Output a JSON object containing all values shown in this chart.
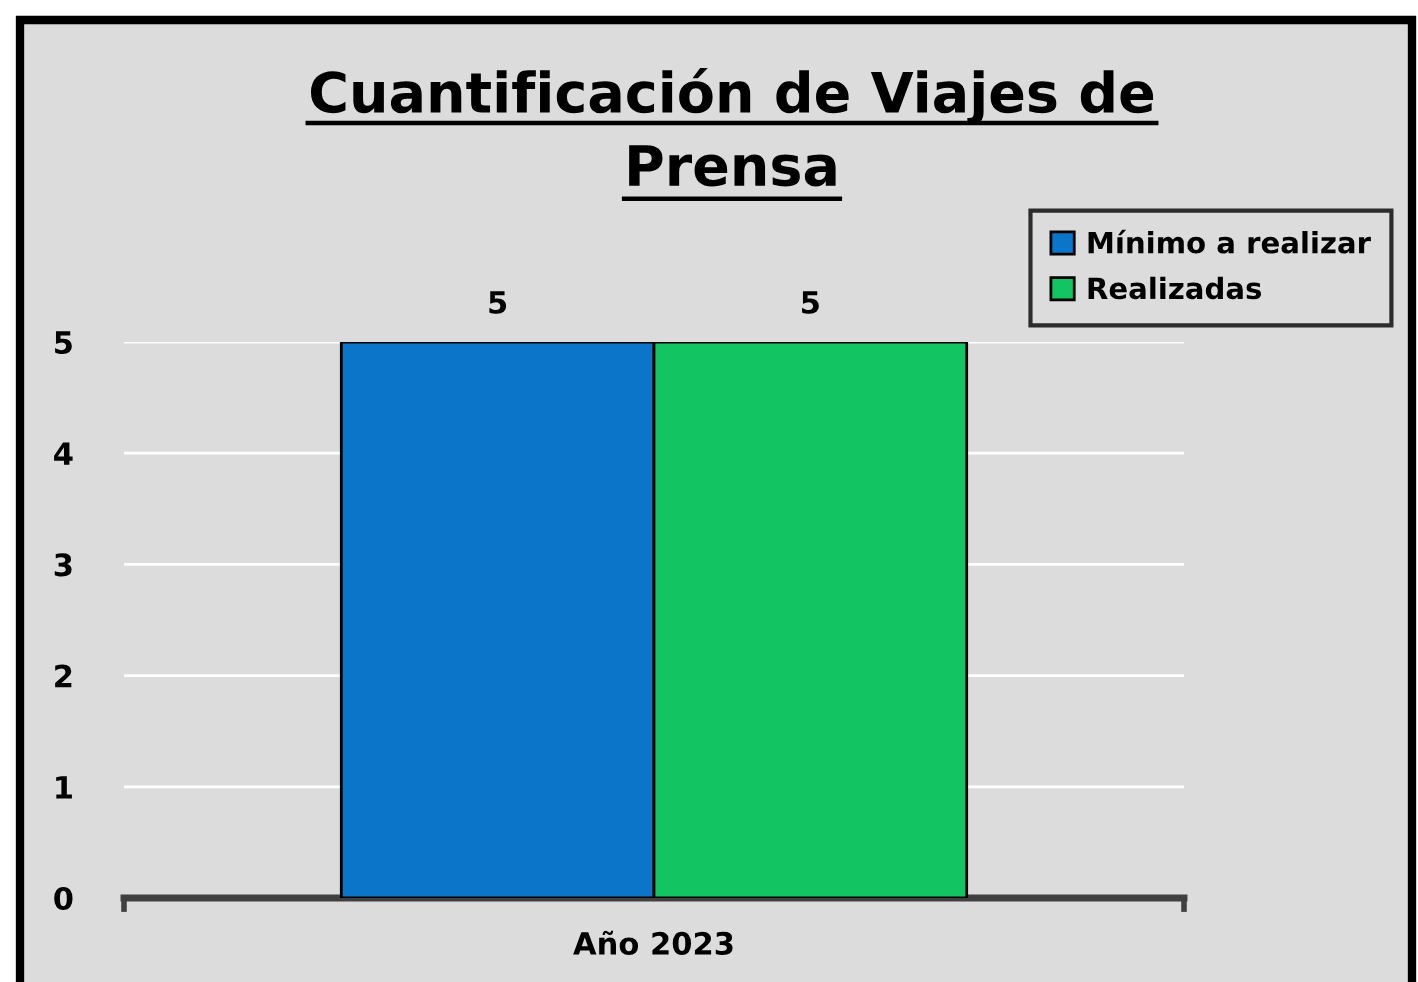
{
  "chart_data": {
    "type": "bar",
    "title": "Cuantificación de Viajes de Prensa",
    "categories": [
      "Año 2023"
    ],
    "series": [
      {
        "name": "Mínimo a realizar",
        "color": "#0b76c9",
        "values": [
          5
        ]
      },
      {
        "name": "Realizadas",
        "color": "#12c462",
        "values": [
          5
        ]
      }
    ],
    "ylim": [
      0,
      5
    ],
    "yticks": [
      0,
      1,
      2,
      3,
      4,
      5
    ],
    "grid": "y",
    "legend": "top right",
    "data_labels": true
  }
}
